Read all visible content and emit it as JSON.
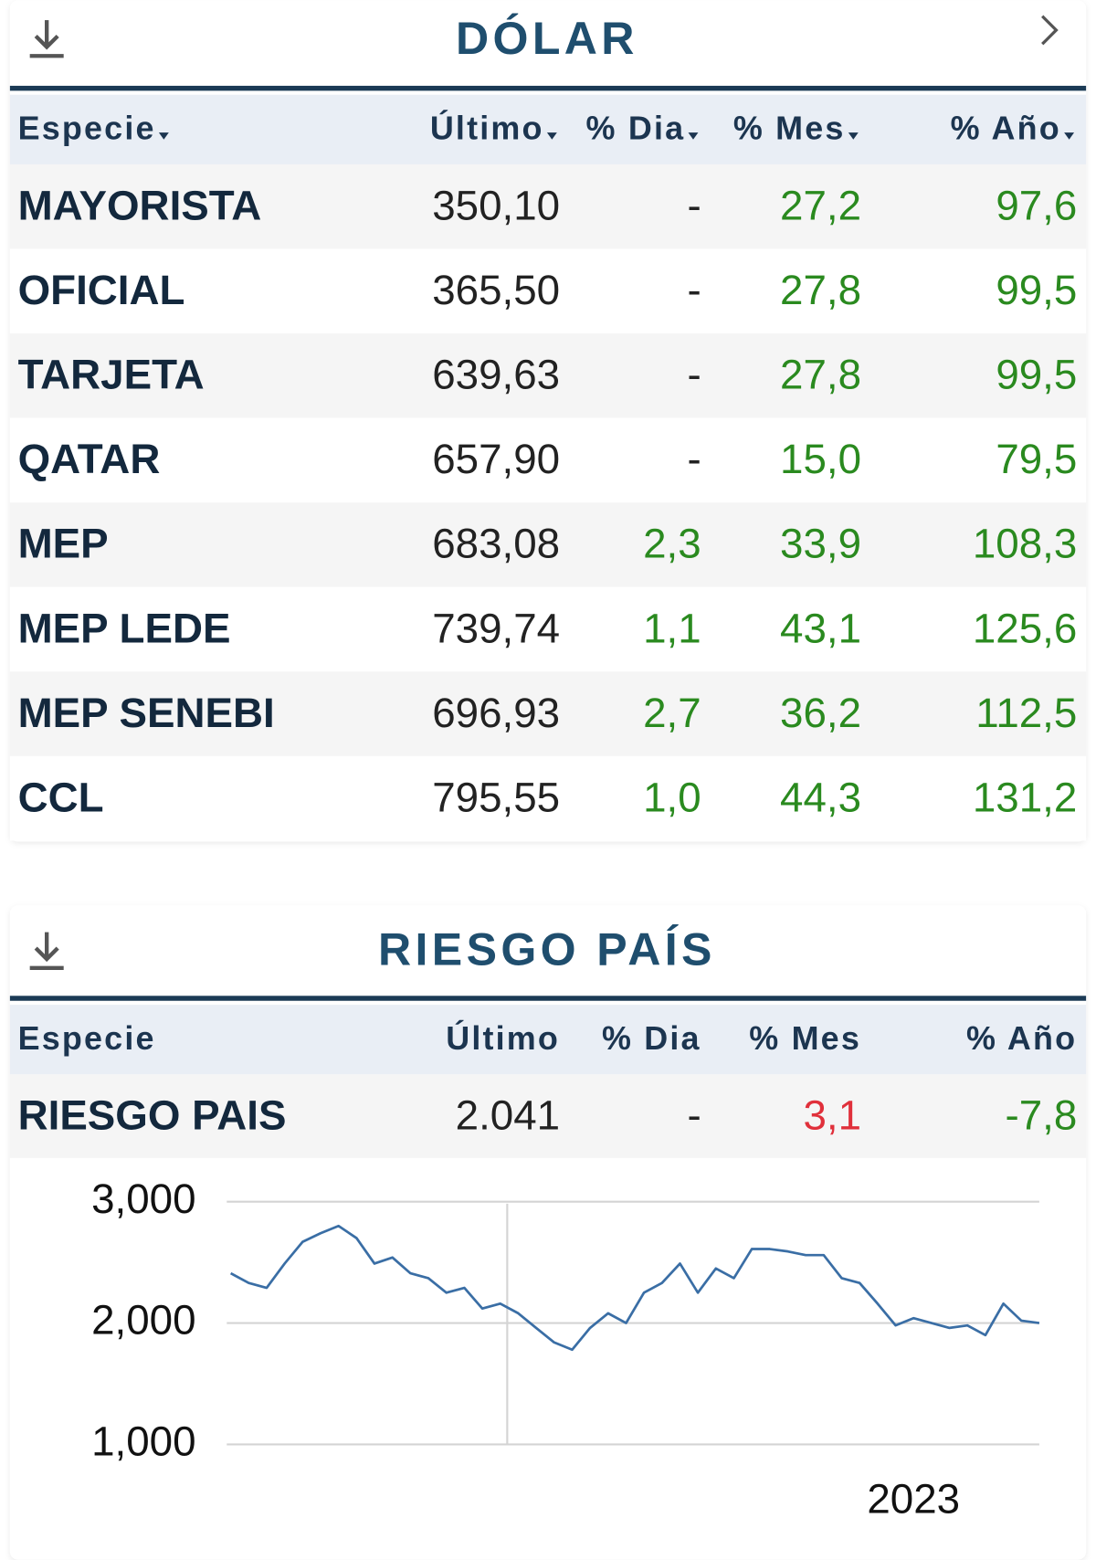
{
  "dolar": {
    "title": "DÓLAR",
    "headers": [
      "Especie",
      "Último",
      "% Dia",
      "% Mes",
      "% Año"
    ],
    "rows": [
      [
        "MAYORISTA",
        "350,10",
        "-",
        "27,2",
        "97,6"
      ],
      [
        "OFICIAL",
        "365,50",
        "-",
        "27,8",
        "99,5"
      ],
      [
        "TARJETA",
        "639,63",
        "-",
        "27,8",
        "99,5"
      ],
      [
        "QATAR",
        "657,90",
        "-",
        "15,0",
        "79,5"
      ],
      [
        "MEP",
        "683,08",
        "2,3",
        "33,9",
        "108,3"
      ],
      [
        "MEP LEDE",
        "739,74",
        "1,1",
        "43,1",
        "125,6"
      ],
      [
        "MEP SENEBI",
        "696,93",
        "2,7",
        "36,2",
        "112,5"
      ],
      [
        "CCL",
        "795,55",
        "1,0",
        "44,3",
        "131,2"
      ]
    ]
  },
  "riesgo": {
    "title": "RIESGO PAÍS",
    "headers": [
      "Especie",
      "Último",
      "% Dia",
      "% Mes",
      "% Año"
    ],
    "rows": [
      [
        "RIESGO PAIS",
        "2.041",
        "-",
        "3,1",
        "-7,8"
      ]
    ]
  },
  "chart_data": {
    "type": "line",
    "color": "#3a6ea5",
    "categories": [
      null,
      null,
      null,
      null,
      null,
      null,
      null,
      null,
      null,
      null,
      null,
      null,
      null,
      null,
      null,
      null,
      null,
      null,
      null,
      null,
      null,
      null,
      null,
      null,
      null,
      null,
      null,
      null,
      null,
      null,
      null,
      null,
      null,
      null,
      null,
      null,
      null,
      null,
      "2023",
      null,
      null,
      null,
      null,
      null,
      null,
      null
    ],
    "values": [
      2410,
      2330,
      2290,
      2490,
      2670,
      2740,
      2800,
      2700,
      2490,
      2540,
      2410,
      2370,
      2250,
      2290,
      2120,
      2160,
      2080,
      1960,
      1840,
      1780,
      1960,
      2080,
      2000,
      2250,
      2330,
      2490,
      2250,
      2450,
      2370,
      2610,
      2610,
      2590,
      2560,
      2560,
      2370,
      2330,
      2160,
      1980,
      2040,
      2000,
      1960,
      1980,
      1900,
      2160,
      2020,
      2000
    ],
    "ylim": [
      1000,
      3000
    ],
    "yticks": [
      {
        "value": 1000,
        "label": "1,000"
      },
      {
        "value": 2000,
        "label": "2,000"
      },
      {
        "value": 3000,
        "label": "3,000"
      }
    ],
    "grid": true
  }
}
